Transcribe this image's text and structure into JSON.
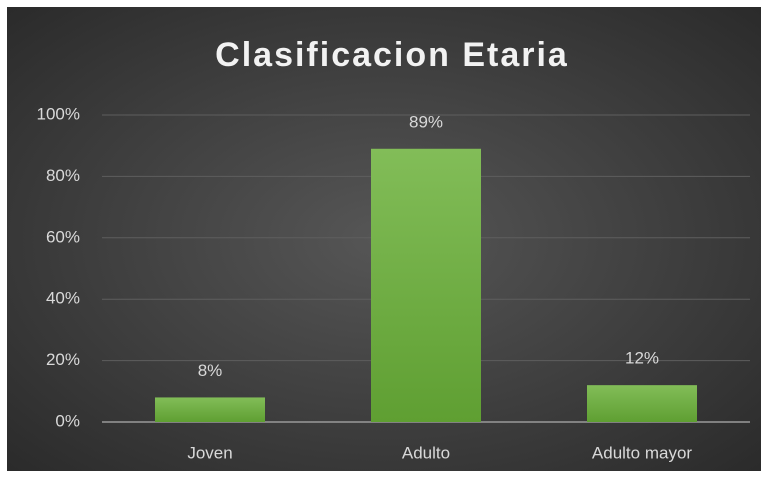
{
  "chart_data": {
    "type": "bar",
    "title": "Clasificacion Etaria",
    "categories": [
      "Joven",
      "Adulto",
      "Adulto mayor"
    ],
    "values": [
      8,
      89,
      12
    ],
    "value_labels": [
      "8%",
      "89%",
      "12%"
    ],
    "color": "#6aad3d",
    "ylim": [
      0,
      100
    ],
    "yticks": [
      {
        "value": 0,
        "label": "0%"
      },
      {
        "value": 20,
        "label": "20%"
      },
      {
        "value": 40,
        "label": "40%"
      },
      {
        "value": 60,
        "label": "60%"
      },
      {
        "value": 80,
        "label": "80%"
      },
      {
        "value": 100,
        "label": "100%"
      }
    ],
    "grid": true
  }
}
